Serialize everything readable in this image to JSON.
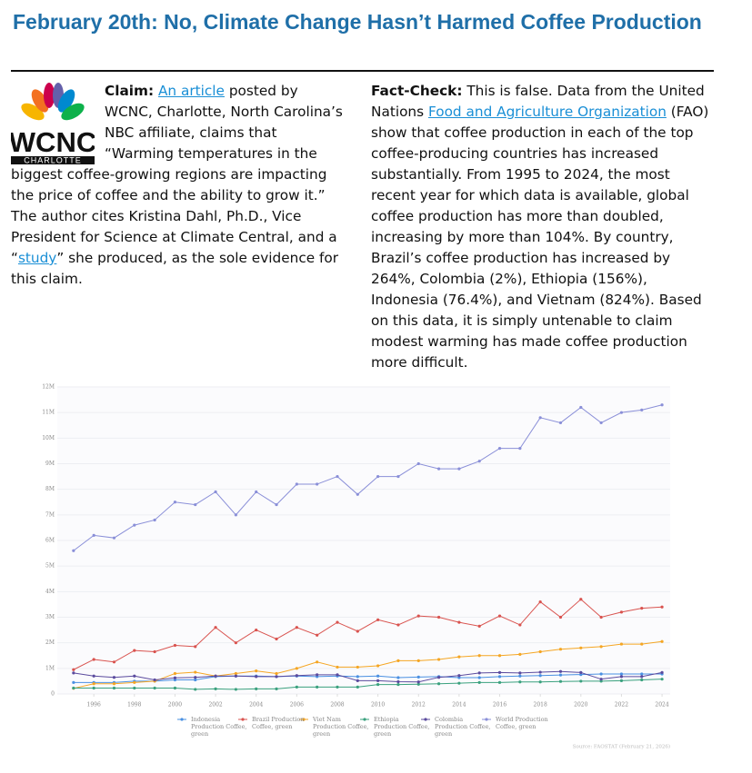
{
  "header": {
    "title": "February 20th: No, Climate Change Hasn’t Harmed Coffee Production"
  },
  "logo": {
    "name": "WCNC",
    "city": "CHARLOTTE"
  },
  "claim": {
    "label": "Claim:",
    "link1": "An article",
    "text1": " posted by WCNC, Charlotte, North Carolina’s NBC affiliate, claims that “Warming temperatures in the biggest coffee-growing regions are impacting the price of coffee and the ability to grow it.” The author cites Kristina Dahl, Ph.D., Vice President for Science at Climate Central, and a “",
    "link2": "study",
    "text2": "” she produced, as the sole evidence for this claim."
  },
  "fact_check": {
    "label": "Fact-Check:",
    "text1": " This is false. Data from the United Nations ",
    "link": "Food and Agriculture Organization",
    "text2": " (FAO) show that coffee production in each of the top coffee-producing countries has increased substantially. From 1995 to 2024, the most recent year for which data is available, global coffee production has more than doubled, increasing by more than 104%. By country, Brazil’s coffee production has increased by 264%, Colombia (2%), Ethiopia (156%), Indonesia (76.4%), and Vietnam (824%). Based on this data, it is simply untenable to claim modest warming has made coffee production more difficult."
  },
  "chart_data": {
    "type": "line",
    "source": "Source: FAOSTAT (February 21, 2026)",
    "x": [
      1995,
      1996,
      1997,
      1998,
      1999,
      2000,
      2001,
      2002,
      2003,
      2004,
      2005,
      2006,
      2007,
      2008,
      2009,
      2010,
      2011,
      2012,
      2013,
      2014,
      2015,
      2016,
      2017,
      2018,
      2019,
      2020,
      2021,
      2022,
      2023,
      2024
    ],
    "xlim": [
      1994.2,
      2024.4
    ],
    "xticks": [
      1996,
      1998,
      2000,
      2002,
      2004,
      2006,
      2008,
      2010,
      2012,
      2014,
      2016,
      2018,
      2020,
      2022,
      2024
    ],
    "ylim": [
      0,
      12000000
    ],
    "yticks": [
      0,
      {
        "value": 1000000,
        "label": "1M"
      },
      {
        "value": 2000000,
        "label": "2M"
      },
      {
        "value": 3000000,
        "label": "3M"
      },
      {
        "value": 4000000,
        "label": "4M"
      },
      {
        "value": 5000000,
        "label": "5M"
      },
      {
        "value": 6000000,
        "label": "6M"
      },
      {
        "value": 7000000,
        "label": "7M"
      },
      {
        "value": 8000000,
        "label": "8M"
      },
      {
        "value": 9000000,
        "label": "9M"
      },
      {
        "value": 10000000,
        "label": "10M"
      },
      {
        "value": 11000000,
        "label": "11M"
      },
      {
        "value": 12000000,
        "label": "12M"
      }
    ],
    "grid": true,
    "series": [
      {
        "name": "Indonesia Production Coffee, green",
        "color": "#4a90e2",
        "values": [
          450000,
          450000,
          450000,
          500000,
          500000,
          550000,
          550000,
          680000,
          700000,
          700000,
          680000,
          700000,
          680000,
          700000,
          680000,
          700000,
          640000,
          660000,
          680000,
          640000,
          640000,
          680000,
          700000,
          720000,
          740000,
          760000,
          780000,
          780000,
          780000,
          780000
        ]
      },
      {
        "name": "Brazil Production Coffee, green",
        "color": "#d9534f",
        "values": [
          950000,
          1350000,
          1250000,
          1700000,
          1650000,
          1900000,
          1850000,
          2600000,
          2000000,
          2500000,
          2150000,
          2600000,
          2300000,
          2800000,
          2450000,
          2900000,
          2700000,
          3050000,
          3000000,
          2800000,
          2650000,
          3050000,
          2700000,
          3600000,
          3000000,
          3700000,
          3000000,
          3200000,
          3350000,
          3400000
        ]
      },
      {
        "name": "Viet Nam Production Coffee, green",
        "color": "#f5a623",
        "values": [
          220000,
          400000,
          400000,
          450000,
          500000,
          800000,
          850000,
          700000,
          800000,
          900000,
          800000,
          1000000,
          1250000,
          1050000,
          1050000,
          1100000,
          1300000,
          1300000,
          1350000,
          1450000,
          1500000,
          1500000,
          1550000,
          1650000,
          1750000,
          1800000,
          1850000,
          1950000,
          1950000,
          2050000
        ]
      },
      {
        "name": "Ethiopia Production Coffee, green",
        "color": "#3aa17e",
        "values": [
          230000,
          230000,
          230000,
          230000,
          230000,
          230000,
          180000,
          200000,
          180000,
          200000,
          200000,
          270000,
          270000,
          270000,
          270000,
          370000,
          370000,
          380000,
          400000,
          420000,
          450000,
          450000,
          470000,
          470000,
          490000,
          500000,
          500000,
          520000,
          550000,
          580000
        ]
      },
      {
        "name": "Colombia Production Coffee, green",
        "color": "#5b4b9e",
        "values": [
          820000,
          700000,
          650000,
          700000,
          550000,
          630000,
          650000,
          700000,
          700000,
          680000,
          680000,
          720000,
          750000,
          750000,
          520000,
          520000,
          480000,
          470000,
          650000,
          720000,
          820000,
          840000,
          820000,
          850000,
          880000,
          840000,
          580000,
          680000,
          680000,
          840000
        ]
      },
      {
        "name": "World Production Coffee, green",
        "color": "#8a8fd8",
        "values": [
          5600000,
          6200000,
          6100000,
          6600000,
          6800000,
          7500000,
          7400000,
          7900000,
          7000000,
          7900000,
          7400000,
          8200000,
          8200000,
          8500000,
          7800000,
          8500000,
          8500000,
          9000000,
          8800000,
          8800000,
          9100000,
          9600000,
          9600000,
          10800000,
          10600000,
          11200000,
          10600000,
          11000000,
          11100000,
          11300000
        ]
      }
    ]
  }
}
